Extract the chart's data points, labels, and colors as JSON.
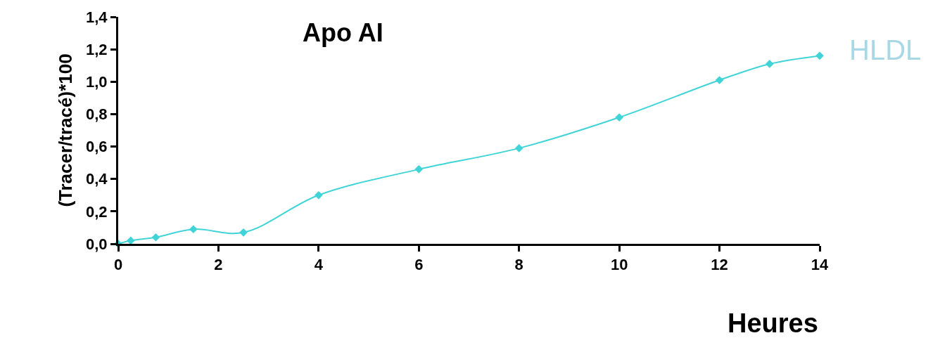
{
  "chart_data": {
    "type": "line",
    "title": "Apo AI",
    "xlabel": "Heures",
    "ylabel": "(Tracer/tracé)*100",
    "x": [
      0,
      0.25,
      0.75,
      1.5,
      2.5,
      4,
      6,
      8,
      10,
      12,
      13,
      14
    ],
    "series": [
      {
        "name": "HLDL",
        "color": "#40d4d8",
        "values": [
          0.0,
          0.02,
          0.04,
          0.09,
          0.07,
          0.3,
          0.46,
          0.59,
          0.78,
          1.01,
          1.11,
          1.16
        ]
      }
    ],
    "xlim": [
      0,
      14
    ],
    "xticks": [
      0,
      2,
      4,
      6,
      8,
      10,
      12,
      14
    ],
    "ylim": [
      0,
      1.4
    ],
    "yticks": [
      {
        "value": 0,
        "label": "0,0"
      },
      {
        "value": 0.2,
        "label": "0,2"
      },
      {
        "value": 0.4,
        "label": "0,4"
      },
      {
        "value": 0.6,
        "label": "0,6"
      },
      {
        "value": 0.8,
        "label": "0,8"
      },
      {
        "value": 1.0,
        "label": "1,0"
      },
      {
        "value": 1.2,
        "label": "1,2"
      },
      {
        "value": 1.4,
        "label": "1,4"
      }
    ],
    "marker": "diamond",
    "line_style": "solid"
  }
}
